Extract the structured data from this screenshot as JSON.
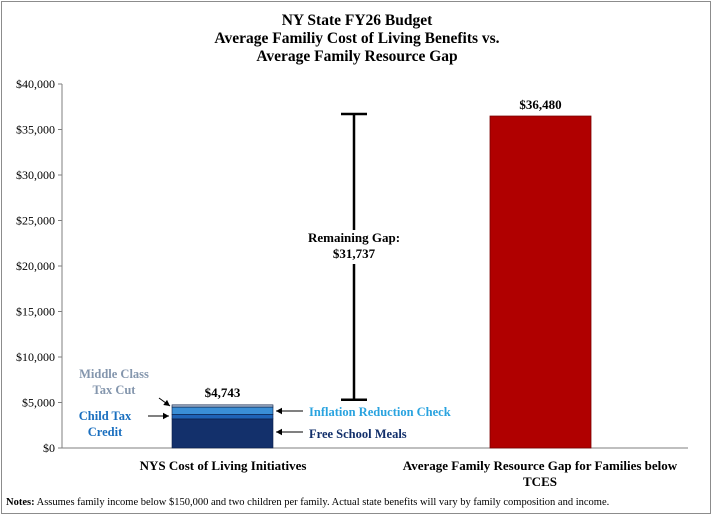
{
  "chart_data": {
    "type": "bar",
    "title": [
      "NY State FY26 Budget",
      "Average Familiy Cost of Living Benefits vs.",
      "Average Family Resource Gap"
    ],
    "categories": [
      "NYS Cost of Living Initiatives",
      "Average Family Resource Gap for Families below TCES"
    ],
    "category_lines": [
      [
        "NYS Cost of Living Initiatives"
      ],
      [
        "Average Family Resource Gap for Families below",
        "TCES"
      ]
    ],
    "ylim": [
      0,
      40000
    ],
    "yticks": [
      0,
      5000,
      10000,
      15000,
      20000,
      25000,
      30000,
      35000,
      40000
    ],
    "ytick_labels": [
      "$0",
      "$5,000",
      "$10,000",
      "$15,000",
      "$20,000",
      "$25,000",
      "$30,000",
      "$35,000",
      "$40,000"
    ],
    "stacked_components": [
      {
        "name": "Free School Meals",
        "value": 3200,
        "color": "#13306b"
      },
      {
        "name": "Inflation Reduction Check",
        "value": 500,
        "color": "#1f63b6"
      },
      {
        "name": "Child Tax Credit",
        "value": 800,
        "color": "#3a8fd6"
      },
      {
        "name": "Middle Class Tax Cut",
        "value": 243,
        "color": "#9fb1c8"
      }
    ],
    "bar1_total": 4743,
    "bar1_total_label": "$4,743",
    "bar2_value": 36480,
    "bar2_label": "$36,480",
    "bar2_color": "#b00000",
    "gap_bracket": {
      "low": 5300,
      "high": 36700,
      "label_lines": [
        "Remaining Gap:",
        "$31,737"
      ]
    },
    "annotations": {
      "middle_class": {
        "lines": [
          "Middle Class",
          "Tax Cut"
        ],
        "color": "#8496ad"
      },
      "child_tax": {
        "lines": [
          "Child Tax",
          "Credit"
        ],
        "color": "#1a6fbf"
      },
      "inflation": {
        "text": "Inflation Reduction Check",
        "color": "#29a3df"
      },
      "meals": {
        "text": "Free School Meals",
        "color": "#13306b"
      }
    }
  },
  "notes": {
    "label": "Notes:",
    "text": " Assumes family income below $150,000  and two children per family. Actual state benefits will vary by family composition and income."
  }
}
